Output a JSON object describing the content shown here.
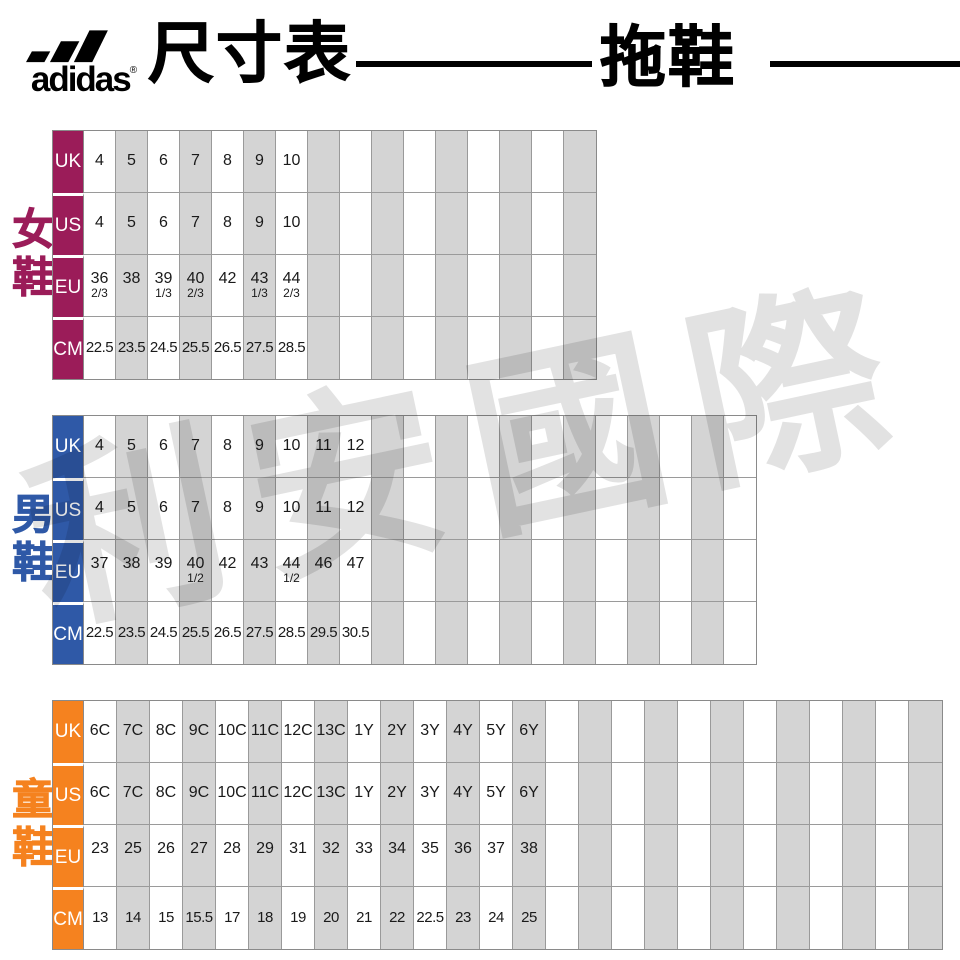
{
  "header": {
    "brand": "adidas",
    "registered": "®",
    "title": "尺寸表",
    "category": "拖鞋"
  },
  "watermark": "利安國際",
  "colors": {
    "women": "#9B1C59",
    "men": "#2F59A7",
    "kids": "#F5821F",
    "stripe_gray": "#D4D4D4",
    "grid_line": "#9a9a9a"
  },
  "tables": [
    {
      "id": "women",
      "side_label": "女鞋",
      "color": "#9B1C59",
      "total_columns": 16,
      "rows": [
        {
          "label": "UK",
          "values": [
            "4",
            "5",
            "6",
            "7",
            "8",
            "9",
            "10"
          ]
        },
        {
          "label": "US",
          "values": [
            "4",
            "5",
            "6",
            "7",
            "8",
            "9",
            "10"
          ]
        },
        {
          "label": "EU",
          "values": [
            "36|2/3",
            "38",
            "39|1/3",
            "40|2/3",
            "42",
            "43|1/3",
            "44|2/3"
          ]
        },
        {
          "label": "CM",
          "values": [
            "22.5",
            "23.5",
            "24.5",
            "25.5",
            "26.5",
            "27.5",
            "28.5"
          ]
        }
      ]
    },
    {
      "id": "men",
      "side_label": "男鞋",
      "color": "#2F59A7",
      "total_columns": 21,
      "rows": [
        {
          "label": "UK",
          "values": [
            "4",
            "5",
            "6",
            "7",
            "8",
            "9",
            "10",
            "11",
            "12"
          ]
        },
        {
          "label": "US",
          "values": [
            "4",
            "5",
            "6",
            "7",
            "8",
            "9",
            "10",
            "11",
            "12"
          ]
        },
        {
          "label": "EU",
          "values": [
            "37",
            "38",
            "39",
            "40|1/2",
            "42",
            "43",
            "44|1/2",
            "46",
            "47"
          ]
        },
        {
          "label": "CM",
          "values": [
            "22.5",
            "23.5",
            "24.5",
            "25.5",
            "26.5",
            "27.5",
            "28.5",
            "29.5",
            "30.5"
          ]
        }
      ]
    },
    {
      "id": "kids",
      "side_label": "童鞋",
      "color": "#F5821F",
      "total_columns": 26,
      "rows": [
        {
          "label": "UK",
          "values": [
            "6C",
            "7C",
            "8C",
            "9C",
            "10C",
            "11C",
            "12C",
            "13C",
            "1Y",
            "2Y",
            "3Y",
            "4Y",
            "5Y",
            "6Y"
          ]
        },
        {
          "label": "US",
          "values": [
            "6C",
            "7C",
            "8C",
            "9C",
            "10C",
            "11C",
            "12C",
            "13C",
            "1Y",
            "2Y",
            "3Y",
            "4Y",
            "5Y",
            "6Y"
          ]
        },
        {
          "label": "EU",
          "values": [
            "23",
            "25",
            "26",
            "27",
            "28",
            "29",
            "31",
            "32",
            "33",
            "34",
            "35",
            "36",
            "37",
            "38"
          ]
        },
        {
          "label": "CM",
          "values": [
            "13",
            "14",
            "15",
            "15.5",
            "17",
            "18",
            "19",
            "20",
            "21",
            "22",
            "22.5",
            "23",
            "24",
            "25"
          ]
        }
      ]
    }
  ]
}
